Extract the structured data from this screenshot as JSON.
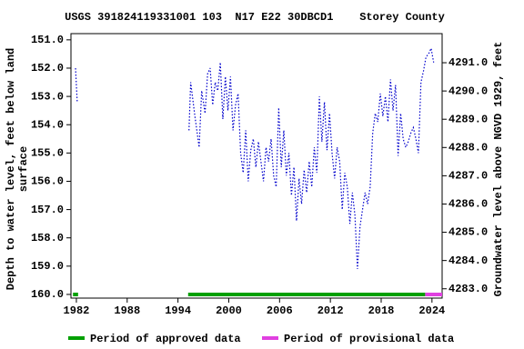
{
  "chart_data": {
    "type": "line",
    "title": "USGS 391824119331001 103  N17 E22 30DBCD1    Storey County",
    "ylabel": [
      "Depth to water level, feet below land",
      "surface"
    ],
    "y2label": "Groundwater level above NGVD 1929, feet",
    "xlim": [
      1981.36,
      2025.2
    ],
    "xticks": [
      1982,
      1988,
      1994,
      2000,
      2006,
      2012,
      2018,
      2024
    ],
    "ylim": [
      160.13,
      150.78
    ],
    "yticks": [
      {
        "value": 151,
        "label": "151.0"
      },
      {
        "value": 152,
        "label": "152.0"
      },
      {
        "value": 153,
        "label": "153.0"
      },
      {
        "value": 154,
        "label": "154.0"
      },
      {
        "value": 155,
        "label": "155.0"
      },
      {
        "value": 156,
        "label": "156.0"
      },
      {
        "value": 157,
        "label": "157.0"
      },
      {
        "value": 158,
        "label": "158.0"
      },
      {
        "value": 159,
        "label": "159.0"
      },
      {
        "value": 160,
        "label": "160.0"
      }
    ],
    "y2lim": [
      4282.67,
      4292.03
    ],
    "y2ticks": [
      {
        "value": 4283,
        "label": "4283.0"
      },
      {
        "value": 4284,
        "label": "4284.0"
      },
      {
        "value": 4285,
        "label": "4285.0"
      },
      {
        "value": 4286,
        "label": "4286.0"
      },
      {
        "value": 4287,
        "label": "4287.0"
      },
      {
        "value": 4288,
        "label": "4288.0"
      },
      {
        "value": 4289,
        "label": "4289.0"
      },
      {
        "value": 4290,
        "label": "4290.0"
      },
      {
        "value": 4291,
        "label": "4291.0"
      }
    ],
    "grid": false,
    "series": [
      {
        "name": "Depth to water level",
        "color": "#0000cc",
        "x": [
          1981.9,
          1982.1,
          null,
          1995.3,
          1995.5,
          1996.0,
          1996.5,
          1996.8,
          1997.2,
          1997.5,
          1997.8,
          1998.1,
          1998.4,
          1998.7,
          1999.0,
          1999.3,
          1999.6,
          1999.9,
          2000.2,
          2000.5,
          2000.8,
          2001.1,
          2001.4,
          2001.7,
          2002.0,
          2002.3,
          2002.6,
          2002.9,
          2003.2,
          2003.5,
          2003.8,
          2004.1,
          2004.4,
          2004.7,
          2005.0,
          2005.3,
          2005.6,
          2005.9,
          2006.2,
          2006.5,
          2006.8,
          2007.1,
          2007.4,
          2007.7,
          2008.0,
          2008.3,
          2008.6,
          2008.9,
          2009.2,
          2009.5,
          2009.8,
          2010.1,
          2010.4,
          2010.7,
          2011.0,
          2011.3,
          2011.6,
          2011.9,
          2012.2,
          2012.5,
          2012.8,
          2013.1,
          2013.4,
          2013.7,
          2014.0,
          2014.3,
          2014.6,
          2014.9,
          2015.2,
          2015.5,
          2015.8,
          2016.1,
          2016.4,
          2016.7,
          2017.0,
          2017.3,
          2017.6,
          2017.9,
          2018.2,
          2018.5,
          2018.8,
          2019.1,
          2019.4,
          2019.7,
          2020.0,
          2020.3,
          2020.6,
          2020.9,
          2021.2,
          2021.5,
          2021.8,
          2022.1,
          2022.4,
          2022.7,
          2023.0,
          2023.3,
          2023.6,
          2023.9,
          2024.2
        ],
        "values": [
          152.0,
          153.2,
          null,
          154.2,
          152.5,
          153.7,
          154.8,
          152.8,
          153.6,
          152.2,
          152.0,
          153.3,
          152.5,
          152.8,
          151.8,
          153.8,
          152.3,
          153.5,
          152.3,
          154.2,
          153.3,
          152.9,
          155.0,
          155.7,
          154.2,
          156.0,
          154.9,
          154.5,
          155.5,
          154.6,
          155.3,
          156.0,
          154.8,
          155.3,
          154.5,
          155.8,
          156.2,
          153.4,
          155.5,
          154.2,
          155.8,
          155.0,
          156.5,
          155.5,
          157.4,
          155.9,
          156.8,
          155.6,
          156.4,
          155.3,
          156.2,
          154.8,
          155.7,
          153.0,
          154.6,
          153.2,
          154.9,
          153.6,
          155.0,
          155.9,
          154.8,
          155.3,
          157.0,
          155.7,
          156.2,
          157.5,
          156.4,
          157.2,
          159.1,
          157.6,
          157.0,
          156.4,
          156.8,
          156.2,
          154.3,
          153.6,
          153.9,
          152.9,
          153.7,
          153.0,
          153.9,
          152.4,
          153.5,
          152.6,
          155.1,
          153.6,
          154.5,
          154.8,
          154.6,
          154.3,
          154.1,
          154.5,
          155.0,
          152.5,
          152.1,
          151.6,
          151.5,
          151.3,
          151.8
        ]
      }
    ],
    "periods": [
      {
        "name": "Period of approved data",
        "color": "#00a000",
        "ranges": [
          [
            1981.6,
            1982.2
          ],
          [
            1995.2,
            2023.2
          ]
        ]
      },
      {
        "name": "Period of provisional data",
        "color": "#e040e0",
        "ranges": [
          [
            2023.2,
            2025.2
          ]
        ]
      }
    ]
  }
}
